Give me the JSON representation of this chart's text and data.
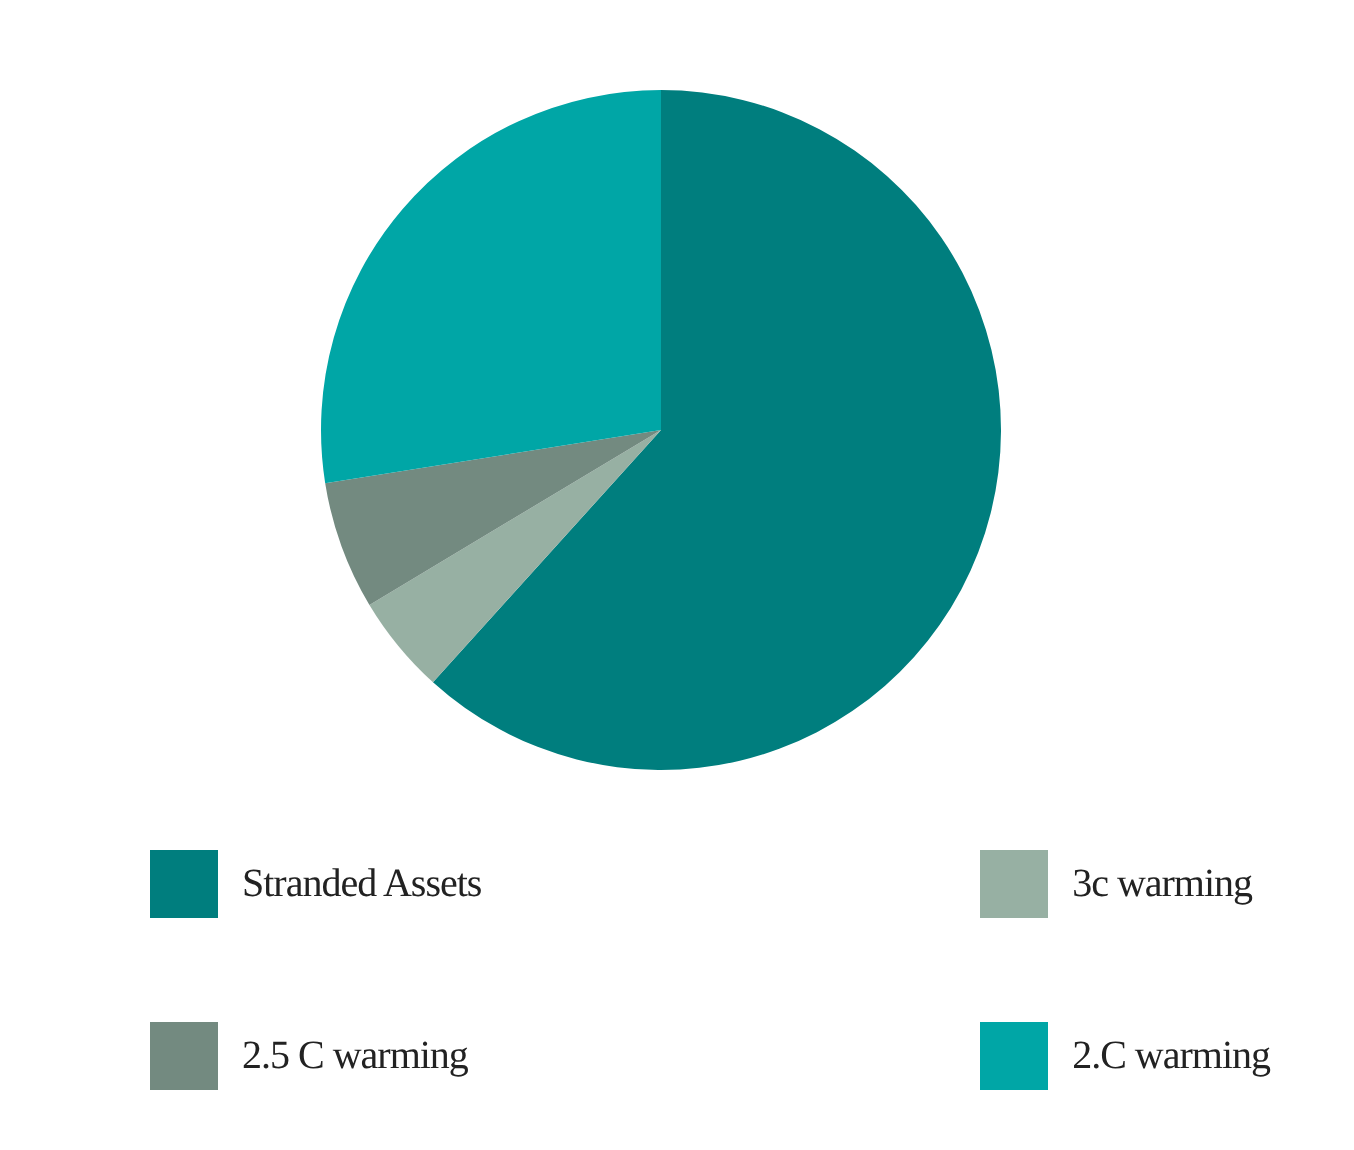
{
  "chart_data": {
    "type": "pie",
    "categories": [
      "Stranded Assets",
      "3c warming",
      "2.5 C warming",
      "2.C warming"
    ],
    "values": [
      61.7,
      4.7,
      6.1,
      27.5
    ],
    "colors": [
      "#007e7e",
      "#97b0a3",
      "#738a80",
      "#00a6a6"
    ],
    "legend": "bottom"
  }
}
